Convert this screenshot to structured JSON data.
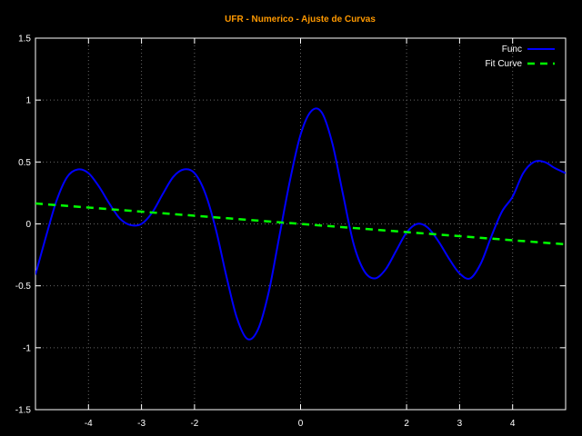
{
  "chart_data": {
    "type": "line",
    "title": "UFR - Numerico - Ajuste de Curvas",
    "xlabel": "",
    "ylabel": "",
    "xlim": [
      -5,
      5
    ],
    "ylim": [
      -1.5,
      1.5
    ],
    "grid": true,
    "legend_position": "top-right",
    "x_ticks": [
      -4,
      -3,
      -2,
      0,
      2,
      3,
      4
    ],
    "x_tick_labels": [
      "-4",
      "-3",
      "-2",
      "0",
      "2",
      "3",
      "4"
    ],
    "y_ticks": [
      -1.5,
      -1,
      -0.5,
      0,
      0.5,
      1,
      1.5
    ],
    "y_tick_labels": [
      "-1.5",
      "-1",
      "-0.5",
      "0",
      "0.5",
      "1",
      "1.5"
    ],
    "series": [
      {
        "name": "Func",
        "color": "#0000ff",
        "style": "solid",
        "x": [
          -5,
          -4.8,
          -4.6,
          -4.4,
          -4.2,
          -4,
          -3.8,
          -3.6,
          -3.4,
          -3.2,
          -3,
          -2.8,
          -2.6,
          -2.4,
          -2.2,
          -2,
          -1.8,
          -1.6,
          -1.4,
          -1.2,
          -1,
          -0.8,
          -0.6,
          -0.4,
          -0.2,
          0,
          0.2,
          0.4,
          0.6,
          0.8,
          1,
          1.2,
          1.4,
          1.6,
          1.8,
          2,
          2.2,
          2.4,
          2.6,
          2.8,
          3,
          3.2,
          3.4,
          3.6,
          3.8,
          4,
          4.2,
          4.4,
          4.6,
          4.8,
          5
        ],
        "y": [
          -0.41,
          -0.1,
          0.19,
          0.38,
          0.44,
          0.41,
          0.3,
          0.16,
          0.04,
          -0.01,
          0.0,
          0.09,
          0.24,
          0.38,
          0.44,
          0.41,
          0.25,
          -0.04,
          -0.42,
          -0.76,
          -0.93,
          -0.85,
          -0.55,
          -0.1,
          0.35,
          0.72,
          0.91,
          0.9,
          0.65,
          0.24,
          -0.16,
          -0.38,
          -0.44,
          -0.37,
          -0.22,
          -0.07,
          0.0,
          -0.03,
          -0.14,
          -0.28,
          -0.4,
          -0.44,
          -0.32,
          -0.1,
          0.1,
          0.22,
          0.41,
          0.5,
          0.5,
          0.45,
          0.41
        ]
      },
      {
        "name": "Fit Curve",
        "color": "#00ff00",
        "style": "dashed",
        "x": [
          -5,
          5
        ],
        "y": [
          0.165,
          -0.165
        ]
      }
    ]
  }
}
